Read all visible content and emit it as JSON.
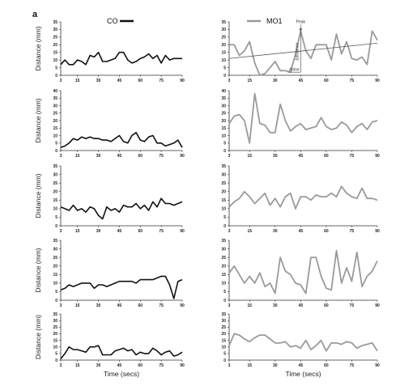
{
  "figure": {
    "panel_letter": "a",
    "legend": [
      {
        "label": "CO",
        "color": "#111111"
      },
      {
        "label": "MO1",
        "color": "#9a9a9a"
      }
    ],
    "annotations": {
      "peak": "Peak",
      "delta": "Δdistance",
      "time": "Δtime"
    }
  },
  "chart_data": [
    {
      "type": "line",
      "group": "CO",
      "row": 1,
      "ylabel": "Distance (mm)",
      "xlabel": "",
      "ylim": [
        0,
        35
      ],
      "yticks": [
        0,
        5,
        10,
        15,
        20,
        25,
        30,
        35
      ],
      "xticks": [
        3,
        15,
        30,
        45,
        60,
        75,
        90
      ],
      "x": [
        3,
        6,
        9,
        12,
        15,
        18,
        21,
        24,
        27,
        30,
        33,
        36,
        39,
        42,
        45,
        48,
        51,
        54,
        57,
        60,
        63,
        66,
        69,
        72,
        75,
        78,
        81,
        84,
        87,
        90
      ],
      "values": [
        7,
        10,
        7,
        7,
        10,
        9,
        7,
        13,
        12,
        15,
        9,
        9,
        10,
        11,
        15,
        15,
        10,
        8,
        9,
        11,
        12,
        14,
        11,
        13,
        8,
        13,
        10,
        11,
        11,
        11
      ]
    },
    {
      "type": "line",
      "group": "MO1",
      "row": 1,
      "ylabel": "",
      "xlabel": "",
      "ylim": [
        0,
        35
      ],
      "yticks": [
        0,
        5,
        10,
        15,
        20,
        25,
        30,
        35
      ],
      "xticks": [
        3,
        15,
        30,
        45,
        60,
        75,
        90
      ],
      "x": [
        3,
        6,
        9,
        12,
        15,
        18,
        21,
        24,
        27,
        30,
        33,
        36,
        39,
        42,
        45,
        48,
        51,
        54,
        57,
        60,
        63,
        66,
        69,
        72,
        75,
        78,
        81,
        84,
        87,
        90
      ],
      "values": [
        20,
        20,
        13,
        16,
        22,
        8,
        0,
        1,
        5,
        9,
        3,
        3,
        2,
        14,
        29,
        16,
        11,
        20,
        20,
        20,
        10,
        27,
        14,
        22,
        11,
        10,
        12,
        7,
        29,
        23
      ],
      "trend": [
        [
          3,
          11
        ],
        [
          90,
          21
        ]
      ],
      "peak": [
        45,
        29
      ]
    },
    {
      "type": "line",
      "group": "CO",
      "row": 2,
      "ylabel": "Distance (mm)",
      "xlabel": "",
      "ylim": [
        0,
        40
      ],
      "yticks": [
        0,
        5,
        10,
        15,
        20,
        25,
        30,
        35,
        40
      ],
      "xticks": [
        3,
        15,
        30,
        45,
        60,
        75,
        90
      ],
      "x": [
        3,
        6,
        9,
        12,
        15,
        18,
        21,
        24,
        27,
        30,
        33,
        36,
        39,
        42,
        45,
        48,
        51,
        54,
        57,
        60,
        63,
        66,
        69,
        72,
        75,
        78,
        81,
        84,
        87,
        90
      ],
      "values": [
        2,
        3,
        5,
        8,
        7,
        9,
        8,
        9,
        8,
        8,
        7,
        7,
        6,
        8,
        10,
        6,
        5,
        10,
        12,
        7,
        6,
        9,
        10,
        5,
        5,
        3,
        4,
        5,
        7,
        2
      ]
    },
    {
      "type": "line",
      "group": "MO1",
      "row": 2,
      "ylabel": "",
      "xlabel": "",
      "ylim": [
        0,
        40
      ],
      "yticks": [
        0,
        5,
        10,
        15,
        20,
        25,
        30,
        35,
        40
      ],
      "xticks": [
        3,
        15,
        30,
        45,
        60,
        75,
        90
      ],
      "x": [
        3,
        6,
        9,
        12,
        15,
        18,
        21,
        24,
        27,
        30,
        33,
        36,
        39,
        42,
        45,
        48,
        51,
        54,
        57,
        60,
        63,
        66,
        69,
        72,
        75,
        78,
        81,
        84,
        87,
        90
      ],
      "values": [
        18,
        23,
        24,
        20,
        5,
        38,
        18,
        17,
        12,
        12,
        31,
        20,
        13,
        16,
        18,
        14,
        15,
        16,
        22,
        16,
        14,
        15,
        19,
        17,
        12,
        16,
        18,
        14,
        19,
        20
      ]
    },
    {
      "type": "line",
      "group": "CO",
      "row": 3,
      "ylabel": "Distance (mm)",
      "xlabel": "",
      "ylim": [
        0,
        35
      ],
      "yticks": [
        0,
        5,
        10,
        15,
        20,
        25,
        30,
        35
      ],
      "xticks": [
        3,
        15,
        30,
        45,
        60,
        75,
        90
      ],
      "x": [
        3,
        6,
        9,
        12,
        15,
        18,
        21,
        24,
        27,
        30,
        33,
        36,
        39,
        42,
        45,
        48,
        51,
        54,
        57,
        60,
        63,
        66,
        69,
        72,
        75,
        78,
        81,
        84,
        87,
        90
      ],
      "values": [
        11,
        10,
        9,
        12,
        9,
        10,
        8,
        11,
        10,
        6,
        4,
        11,
        9,
        10,
        8,
        12,
        11,
        11,
        13,
        10,
        12,
        9,
        14,
        11,
        16,
        13,
        13,
        12,
        13,
        14
      ]
    },
    {
      "type": "line",
      "group": "MO1",
      "row": 3,
      "ylabel": "",
      "xlabel": "",
      "ylim": [
        0,
        35
      ],
      "yticks": [
        0,
        5,
        10,
        15,
        20,
        25,
        30,
        35
      ],
      "xticks": [
        3,
        15,
        30,
        45,
        60,
        75,
        90
      ],
      "x": [
        3,
        6,
        9,
        12,
        15,
        18,
        21,
        24,
        27,
        30,
        33,
        36,
        39,
        42,
        45,
        48,
        51,
        54,
        57,
        60,
        63,
        66,
        69,
        72,
        75,
        78,
        81,
        84,
        87,
        90
      ],
      "values": [
        11,
        14,
        16,
        20,
        17,
        13,
        16,
        19,
        12,
        16,
        11,
        17,
        19,
        10,
        17,
        17,
        15,
        18,
        17,
        17,
        19,
        17,
        23,
        19,
        17,
        16,
        22,
        16,
        16,
        15
      ]
    },
    {
      "type": "line",
      "group": "CO",
      "row": 4,
      "ylabel": "Distance (mm)",
      "xlabel": "",
      "ylim": [
        0,
        35
      ],
      "yticks": [
        0,
        5,
        10,
        15,
        20,
        25,
        30,
        35
      ],
      "xticks": [
        3,
        15,
        30,
        45,
        60,
        75,
        90
      ],
      "x": [
        3,
        6,
        9,
        12,
        15,
        18,
        21,
        24,
        27,
        30,
        33,
        36,
        39,
        42,
        45,
        48,
        51,
        54,
        57,
        60,
        63,
        66,
        69,
        72,
        75,
        78,
        81,
        84,
        87,
        90
      ],
      "values": [
        6,
        7,
        9,
        8,
        9,
        10,
        10,
        10,
        7,
        9,
        9,
        8,
        9,
        10,
        11,
        11,
        11,
        11,
        10,
        12,
        12,
        12,
        12,
        13,
        14,
        14,
        9,
        1,
        11,
        12
      ]
    },
    {
      "type": "line",
      "group": "MO1",
      "row": 4,
      "ylabel": "",
      "xlabel": "",
      "ylim": [
        0,
        35
      ],
      "yticks": [
        0,
        5,
        10,
        15,
        20,
        25,
        30,
        35
      ],
      "xticks": [
        3,
        15,
        30,
        45,
        60,
        75,
        90
      ],
      "x": [
        3,
        6,
        9,
        12,
        15,
        18,
        21,
        24,
        27,
        30,
        33,
        36,
        39,
        42,
        45,
        48,
        51,
        54,
        57,
        60,
        63,
        66,
        69,
        72,
        75,
        78,
        81,
        84,
        87,
        90
      ],
      "values": [
        16,
        20,
        15,
        10,
        14,
        10,
        16,
        8,
        10,
        4,
        25,
        17,
        15,
        10,
        9,
        4,
        25,
        25,
        14,
        7,
        6,
        29,
        10,
        19,
        11,
        28,
        8,
        14,
        17,
        23
      ]
    },
    {
      "type": "line",
      "group": "CO",
      "row": 5,
      "ylabel": "Distance (mm)",
      "xlabel": "Time (secs)",
      "ylim": [
        0,
        35
      ],
      "yticks": [
        0,
        5,
        10,
        15,
        20,
        25,
        30,
        35
      ],
      "xticks": [
        3,
        15,
        30,
        45,
        60,
        75,
        90
      ],
      "x": [
        3,
        6,
        9,
        12,
        15,
        18,
        21,
        24,
        27,
        30,
        33,
        36,
        39,
        42,
        45,
        48,
        51,
        54,
        57,
        60,
        63,
        66,
        69,
        72,
        75,
        78,
        81,
        84,
        87,
        90
      ],
      "values": [
        1,
        5,
        10,
        8,
        8,
        7,
        6,
        10,
        10,
        11,
        4,
        4,
        4,
        7,
        8,
        9,
        7,
        8,
        4,
        6,
        5,
        5,
        9,
        7,
        4,
        6,
        7,
        3,
        4,
        6
      ]
    },
    {
      "type": "line",
      "group": "MO1",
      "row": 5,
      "ylabel": "",
      "xlabel": "Time (secs)",
      "ylim": [
        0,
        35
      ],
      "yticks": [
        0,
        5,
        10,
        15,
        20,
        25,
        30,
        35
      ],
      "xticks": [
        3,
        15,
        30,
        45,
        60,
        75,
        90
      ],
      "x": [
        3,
        6,
        9,
        12,
        15,
        18,
        21,
        24,
        27,
        30,
        33,
        36,
        39,
        42,
        45,
        48,
        51,
        54,
        57,
        60,
        63,
        66,
        69,
        72,
        75,
        78,
        81,
        84,
        87,
        90
      ],
      "values": [
        11,
        20,
        19,
        16,
        14,
        17,
        19,
        19,
        16,
        13,
        13,
        14,
        10,
        11,
        9,
        15,
        8,
        11,
        15,
        7,
        13,
        13,
        12,
        14,
        13,
        9,
        11,
        12,
        13,
        7
      ]
    }
  ]
}
